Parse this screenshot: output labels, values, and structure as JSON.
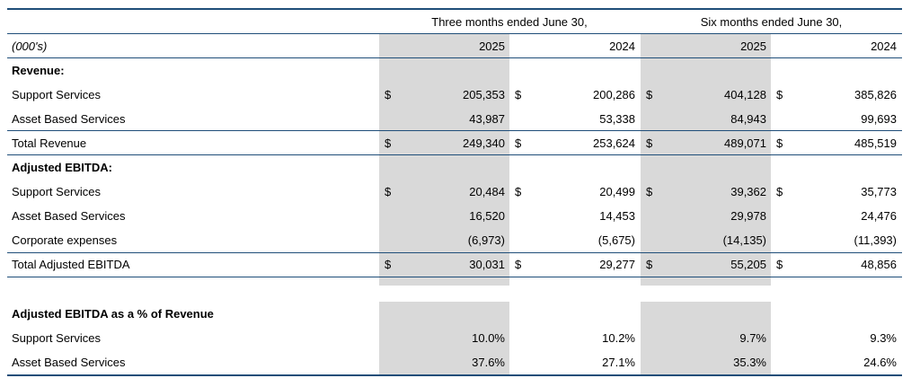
{
  "table": {
    "period_headers": {
      "three_months": "Three months ended June 30,",
      "six_months": "Six months ended June 30,"
    },
    "units_label": "(000's)",
    "years": [
      "2025",
      "2024",
      "2025",
      "2024"
    ],
    "rows": [
      {
        "label": "Revenue:",
        "bold": true,
        "cells": []
      },
      {
        "label": "Support Services",
        "cells": [
          {
            "cur": "$",
            "val": "205,353"
          },
          {
            "cur": "$",
            "val": "200,286"
          },
          {
            "cur": "$",
            "val": "404,128"
          },
          {
            "cur": "$",
            "val": "385,826"
          }
        ]
      },
      {
        "label": "Asset Based Services",
        "cells": [
          {
            "cur": "",
            "val": "43,987"
          },
          {
            "cur": "",
            "val": "53,338"
          },
          {
            "cur": "",
            "val": "84,943"
          },
          {
            "cur": "",
            "val": "99,693"
          }
        ]
      },
      {
        "label": "Total Revenue",
        "cells": [
          {
            "cur": "$",
            "val": "249,340"
          },
          {
            "cur": "$",
            "val": "253,624"
          },
          {
            "cur": "$",
            "val": "489,071"
          },
          {
            "cur": "$",
            "val": "485,519"
          }
        ]
      },
      {
        "label": "Adjusted EBITDA:",
        "bold": true,
        "cells": []
      },
      {
        "label": "Support Services",
        "cells": [
          {
            "cur": "$",
            "val": "20,484"
          },
          {
            "cur": "$",
            "val": "20,499"
          },
          {
            "cur": "$",
            "val": "39,362"
          },
          {
            "cur": "$",
            "val": "35,773"
          }
        ]
      },
      {
        "label": "Asset Based Services",
        "cells": [
          {
            "cur": "",
            "val": "16,520"
          },
          {
            "cur": "",
            "val": "14,453"
          },
          {
            "cur": "",
            "val": "29,978"
          },
          {
            "cur": "",
            "val": "24,476"
          }
        ]
      },
      {
        "label": "Corporate expenses",
        "cells": [
          {
            "cur": "",
            "val": "(6,973)"
          },
          {
            "cur": "",
            "val": "(5,675)"
          },
          {
            "cur": "",
            "val": "(14,135)"
          },
          {
            "cur": "",
            "val": "(11,393)"
          }
        ]
      },
      {
        "label": "Total Adjusted EBITDA",
        "cells": [
          {
            "cur": "$",
            "val": "30,031"
          },
          {
            "cur": "$",
            "val": "29,277"
          },
          {
            "cur": "$",
            "val": "55,205"
          },
          {
            "cur": "$",
            "val": "48,856"
          }
        ]
      },
      {
        "label": "Adjusted EBITDA as a % of Revenue",
        "bold": true,
        "cells": []
      },
      {
        "label": "Support Services",
        "cells": [
          {
            "cur": "",
            "val": "10.0%"
          },
          {
            "cur": "",
            "val": "10.2%"
          },
          {
            "cur": "",
            "val": "9.7%"
          },
          {
            "cur": "",
            "val": "9.3%"
          }
        ]
      },
      {
        "label": "Asset Based Services",
        "cells": [
          {
            "cur": "",
            "val": "37.6%"
          },
          {
            "cur": "",
            "val": "27.1%"
          },
          {
            "cur": "",
            "val": "35.3%"
          },
          {
            "cur": "",
            "val": "24.6%"
          }
        ]
      }
    ]
  },
  "colors": {
    "rule": "#1f4e79",
    "shade": "#d9d9d9"
  }
}
